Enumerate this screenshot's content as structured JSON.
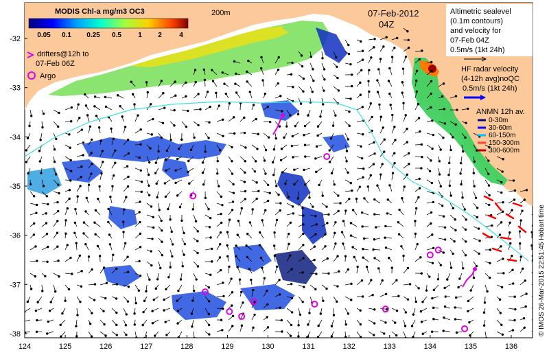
{
  "title": "MODIS Chl-a mg/m3 OC3",
  "isobath_label": "200m",
  "date": "07-Feb-2012",
  "time": "04Z",
  "drifters_label": [
    "drifters@12h to",
    "07-Feb 06Z"
  ],
  "argo_label": "Argo",
  "altimetry_legend": [
    "Altimetric sealevel",
    "(0.1m contours)",
    "and velocity for",
    "07-Feb 04Z",
    "0.5m/s (1kt 24h)"
  ],
  "hf_radar_legend": [
    "HF radar velocity",
    "(4-12h avg)noQC",
    "0.5m/s (1kt 24h)"
  ],
  "anmn_title": "ANMN 12h av.",
  "anmn_depths": [
    {
      "label": "0-30m",
      "color": "#000080"
    },
    {
      "label": "30-60m",
      "color": "#0000ff"
    },
    {
      "label": "60-150m",
      "color": "#00c0ff"
    },
    {
      "label": "150-300m",
      "color": "#ff4040"
    },
    {
      "label": "300-600m",
      "color": "#c00000"
    }
  ],
  "colorbar_ticks": [
    "0.05",
    "0.1",
    "0.25",
    "0.5",
    "1",
    "2",
    "4"
  ],
  "copyright": "© IMOS 26-Mar-2015 22:51:45 Hobart time",
  "x_ticks": [
    "124",
    "125",
    "126",
    "127",
    "128",
    "129",
    "130",
    "131",
    "132",
    "133",
    "134",
    "135",
    "136"
  ],
  "y_ticks": [
    "-32",
    "-33",
    "-34",
    "-35",
    "-36",
    "-37",
    "-38"
  ],
  "colors": {
    "land": "#fcc99a",
    "argo": "#e000e0",
    "drifter": "#e000e0",
    "isobath": "#40e0e0",
    "radar": "#ff0000"
  },
  "argo_floats": [
    {
      "lon": 128.15,
      "lat": -35.2
    },
    {
      "lon": 131.45,
      "lat": -34.4
    },
    {
      "lon": 128.45,
      "lat": -37.15
    },
    {
      "lon": 129.05,
      "lat": -37.55
    },
    {
      "lon": 129.35,
      "lat": -37.65
    },
    {
      "lon": 129.65,
      "lat": -37.35
    },
    {
      "lon": 131.15,
      "lat": -37.4
    },
    {
      "lon": 132.9,
      "lat": -37.5
    },
    {
      "lon": 134.0,
      "lat": -36.4
    },
    {
      "lon": 134.2,
      "lat": -36.3
    },
    {
      "lon": 134.85,
      "lat": -37.9
    }
  ]
}
